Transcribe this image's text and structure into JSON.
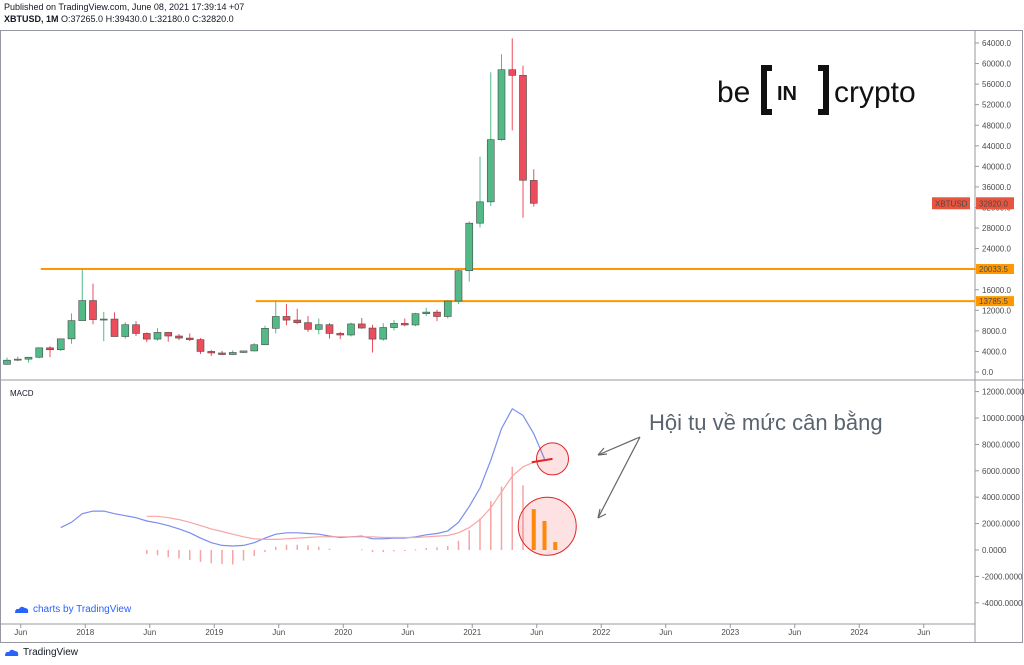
{
  "header": {
    "published": "Published on TradingView.com, June 08, 2021 17:39:14 +07",
    "symbol": "XBTUSD, 1M",
    "ohlc": "O:37265.0 H:39430.0 L:32180.0 C:32820.0"
  },
  "brand": {
    "left": "be",
    "middle": "IN",
    "right": "crypto"
  },
  "annotation": "Hội tụ về mức cân bằng",
  "macd_label": "MACD",
  "watermark": "charts by TradingView",
  "footer": "TradingView",
  "colors": {
    "up": "#53b987",
    "down": "#eb4d5c",
    "level": "#ff9800",
    "macd_line": "#7b8cf0",
    "signal_line": "#f7a4a4",
    "price_tag": "#e8553e"
  },
  "chart_data": [
    {
      "type": "candlestick",
      "title": "XBTUSD, 1M",
      "ylim": [
        -2000,
        66000
      ],
      "yticks": [
        "64000.0",
        "60000.0",
        "56000.0",
        "52000.0",
        "48000.0",
        "44000.0",
        "40000.0",
        "36000.0",
        "32000.0",
        "28000.0",
        "24000.0",
        "20000.0",
        "16000.0",
        "12000.0",
        "8000.0",
        "4000.0",
        "0.0"
      ],
      "xticks": [
        "Jun",
        "2018",
        "Jun",
        "2019",
        "Jun",
        "2020",
        "Jun",
        "2021",
        "Jun",
        "2022",
        "Jun",
        "2023",
        "Jun",
        "2024",
        "Jun"
      ],
      "last_price_label": "XBTUSD",
      "last_price": "32820.0",
      "levels": [
        {
          "value": 20033.5,
          "label": "20033.5"
        },
        {
          "value": 13785.5,
          "label": "13785.5"
        }
      ],
      "candles": [
        {
          "t": "2017-05",
          "o": 1500,
          "h": 2800,
          "l": 1400,
          "c": 2300
        },
        {
          "t": "2017-06",
          "o": 2300,
          "h": 3000,
          "l": 2100,
          "c": 2500
        },
        {
          "t": "2017-07",
          "o": 2500,
          "h": 2950,
          "l": 1850,
          "c": 2870
        },
        {
          "t": "2017-08",
          "o": 2870,
          "h": 4750,
          "l": 2700,
          "c": 4700
        },
        {
          "t": "2017-09",
          "o": 4700,
          "h": 5000,
          "l": 2900,
          "c": 4330
        },
        {
          "t": "2017-10",
          "o": 4330,
          "h": 6450,
          "l": 4100,
          "c": 6450
        },
        {
          "t": "2017-11",
          "o": 6450,
          "h": 11400,
          "l": 5500,
          "c": 10000
        },
        {
          "t": "2017-12",
          "o": 10000,
          "h": 20000,
          "l": 10000,
          "c": 13900
        },
        {
          "t": "2018-01",
          "o": 13900,
          "h": 17200,
          "l": 9300,
          "c": 10200
        },
        {
          "t": "2018-02",
          "o": 10200,
          "h": 11700,
          "l": 6000,
          "c": 10300
        },
        {
          "t": "2018-03",
          "o": 10300,
          "h": 11600,
          "l": 6900,
          "c": 6900
        },
        {
          "t": "2018-04",
          "o": 6900,
          "h": 9700,
          "l": 6500,
          "c": 9200
        },
        {
          "t": "2018-05",
          "o": 9200,
          "h": 9900,
          "l": 7000,
          "c": 7500
        },
        {
          "t": "2018-06",
          "o": 7500,
          "h": 7700,
          "l": 5800,
          "c": 6400
        },
        {
          "t": "2018-07",
          "o": 6400,
          "h": 8500,
          "l": 6100,
          "c": 7700
        },
        {
          "t": "2018-08",
          "o": 7700,
          "h": 7800,
          "l": 5900,
          "c": 7000
        },
        {
          "t": "2018-09",
          "o": 7000,
          "h": 7400,
          "l": 6200,
          "c": 6600
        },
        {
          "t": "2018-10",
          "o": 6600,
          "h": 7500,
          "l": 6000,
          "c": 6300
        },
        {
          "t": "2018-11",
          "o": 6300,
          "h": 6600,
          "l": 3500,
          "c": 4000
        },
        {
          "t": "2018-12",
          "o": 4000,
          "h": 4300,
          "l": 3100,
          "c": 3700
        },
        {
          "t": "2019-01",
          "o": 3700,
          "h": 4100,
          "l": 3300,
          "c": 3400
        },
        {
          "t": "2019-02",
          "o": 3400,
          "h": 4200,
          "l": 3300,
          "c": 3800
        },
        {
          "t": "2019-03",
          "o": 3800,
          "h": 4150,
          "l": 3700,
          "c": 4100
        },
        {
          "t": "2019-04",
          "o": 4100,
          "h": 5600,
          "l": 4000,
          "c": 5300
        },
        {
          "t": "2019-05",
          "o": 5300,
          "h": 9000,
          "l": 5300,
          "c": 8500
        },
        {
          "t": "2019-06",
          "o": 8500,
          "h": 13900,
          "l": 7500,
          "c": 10800
        },
        {
          "t": "2019-07",
          "o": 10800,
          "h": 13200,
          "l": 9100,
          "c": 10100
        },
        {
          "t": "2019-08",
          "o": 10100,
          "h": 12300,
          "l": 9300,
          "c": 9600
        },
        {
          "t": "2019-09",
          "o": 9600,
          "h": 10900,
          "l": 7800,
          "c": 8300
        },
        {
          "t": "2019-10",
          "o": 8300,
          "h": 10400,
          "l": 7300,
          "c": 9200
        },
        {
          "t": "2019-11",
          "o": 9200,
          "h": 9500,
          "l": 6500,
          "c": 7500
        },
        {
          "t": "2019-12",
          "o": 7500,
          "h": 7800,
          "l": 6400,
          "c": 7200
        },
        {
          "t": "2020-01",
          "o": 7200,
          "h": 9600,
          "l": 6900,
          "c": 9350
        },
        {
          "t": "2020-02",
          "o": 9350,
          "h": 10500,
          "l": 8400,
          "c": 8550
        },
        {
          "t": "2020-03",
          "o": 8550,
          "h": 9200,
          "l": 3800,
          "c": 6400
        },
        {
          "t": "2020-04",
          "o": 6400,
          "h": 9500,
          "l": 6100,
          "c": 8650
        },
        {
          "t": "2020-05",
          "o": 8650,
          "h": 10100,
          "l": 8100,
          "c": 9450
        },
        {
          "t": "2020-06",
          "o": 9450,
          "h": 10400,
          "l": 8900,
          "c": 9150
        },
        {
          "t": "2020-07",
          "o": 9150,
          "h": 11500,
          "l": 8900,
          "c": 11350
        },
        {
          "t": "2020-08",
          "o": 11350,
          "h": 12500,
          "l": 10900,
          "c": 11650
        },
        {
          "t": "2020-09",
          "o": 11650,
          "h": 12100,
          "l": 9900,
          "c": 10800
        },
        {
          "t": "2020-10",
          "o": 10800,
          "h": 14000,
          "l": 10400,
          "c": 13800
        },
        {
          "t": "2020-11",
          "o": 13800,
          "h": 19900,
          "l": 13200,
          "c": 19700
        },
        {
          "t": "2020-12",
          "o": 19700,
          "h": 29300,
          "l": 17600,
          "c": 28950
        },
        {
          "t": "2021-01",
          "o": 28950,
          "h": 41900,
          "l": 28100,
          "c": 33100
        },
        {
          "t": "2021-02",
          "o": 33100,
          "h": 58300,
          "l": 32300,
          "c": 45200
        },
        {
          "t": "2021-03",
          "o": 45200,
          "h": 61800,
          "l": 45000,
          "c": 58800
        },
        {
          "t": "2021-04",
          "o": 58800,
          "h": 64900,
          "l": 47000,
          "c": 57700
        },
        {
          "t": "2021-05",
          "o": 57700,
          "h": 59600,
          "l": 30000,
          "c": 37300
        },
        {
          "t": "2021-06",
          "o": 37265,
          "h": 39430,
          "l": 32180,
          "c": 32820
        }
      ]
    },
    {
      "type": "line",
      "title": "MACD",
      "ylim": [
        -4500,
        12500
      ],
      "yticks": [
        "12000.0000",
        "10000.0000",
        "8000.0000",
        "6000.0000",
        "4000.0000",
        "2000.0000",
        "0.0000",
        "-2000.0000",
        "-4000.0000"
      ],
      "series": [
        {
          "name": "MACD",
          "values": [
            {
              "t": "2017-10",
              "y": 1700
            },
            {
              "t": "2017-11",
              "y": 2100
            },
            {
              "t": "2017-12",
              "y": 2750
            },
            {
              "t": "2018-01",
              "y": 2950
            },
            {
              "t": "2018-02",
              "y": 2950
            },
            {
              "t": "2018-03",
              "y": 2750
            },
            {
              "t": "2018-04",
              "y": 2600
            },
            {
              "t": "2018-05",
              "y": 2450
            },
            {
              "t": "2018-06",
              "y": 2200
            },
            {
              "t": "2018-07",
              "y": 2050
            },
            {
              "t": "2018-08",
              "y": 1850
            },
            {
              "t": "2018-09",
              "y": 1600
            },
            {
              "t": "2018-10",
              "y": 1300
            },
            {
              "t": "2018-11",
              "y": 900
            },
            {
              "t": "2018-12",
              "y": 550
            },
            {
              "t": "2019-01",
              "y": 350
            },
            {
              "t": "2019-02",
              "y": 300
            },
            {
              "t": "2019-03",
              "y": 350
            },
            {
              "t": "2019-04",
              "y": 550
            },
            {
              "t": "2019-05",
              "y": 900
            },
            {
              "t": "2019-06",
              "y": 1200
            },
            {
              "t": "2019-07",
              "y": 1300
            },
            {
              "t": "2019-08",
              "y": 1300
            },
            {
              "t": "2019-09",
              "y": 1250
            },
            {
              "t": "2019-10",
              "y": 1200
            },
            {
              "t": "2019-11",
              "y": 1050
            },
            {
              "t": "2019-12",
              "y": 950
            },
            {
              "t": "2020-01",
              "y": 1000
            },
            {
              "t": "2020-02",
              "y": 1050
            },
            {
              "t": "2020-03",
              "y": 850
            },
            {
              "t": "2020-04",
              "y": 850
            },
            {
              "t": "2020-05",
              "y": 900
            },
            {
              "t": "2020-06",
              "y": 900
            },
            {
              "t": "2020-07",
              "y": 1000
            },
            {
              "t": "2020-08",
              "y": 1150
            },
            {
              "t": "2020-09",
              "y": 1250
            },
            {
              "t": "2020-10",
              "y": 1450
            },
            {
              "t": "2020-11",
              "y": 2100
            },
            {
              "t": "2020-12",
              "y": 3300
            },
            {
              "t": "2021-01",
              "y": 4700
            },
            {
              "t": "2021-02",
              "y": 6800
            },
            {
              "t": "2021-03",
              "y": 9200
            },
            {
              "t": "2021-04",
              "y": 10700
            },
            {
              "t": "2021-05",
              "y": 10200
            },
            {
              "t": "2021-06",
              "y": 8800
            },
            {
              "t": "2021-07",
              "y": 6900
            }
          ]
        },
        {
          "name": "Signal",
          "values": [
            {
              "t": "2018-06",
              "y": 2550
            },
            {
              "t": "2018-07",
              "y": 2550
            },
            {
              "t": "2018-08",
              "y": 2450
            },
            {
              "t": "2018-09",
              "y": 2300
            },
            {
              "t": "2018-10",
              "y": 2100
            },
            {
              "t": "2018-11",
              "y": 1850
            },
            {
              "t": "2018-12",
              "y": 1600
            },
            {
              "t": "2019-01",
              "y": 1400
            },
            {
              "t": "2019-02",
              "y": 1200
            },
            {
              "t": "2019-03",
              "y": 1000
            },
            {
              "t": "2019-04",
              "y": 850
            },
            {
              "t": "2019-05",
              "y": 800
            },
            {
              "t": "2019-06",
              "y": 800
            },
            {
              "t": "2019-07",
              "y": 850
            },
            {
              "t": "2019-08",
              "y": 900
            },
            {
              "t": "2019-09",
              "y": 950
            },
            {
              "t": "2019-10",
              "y": 1000
            },
            {
              "t": "2019-11",
              "y": 1000
            },
            {
              "t": "2019-12",
              "y": 1000
            },
            {
              "t": "2020-01",
              "y": 1000
            },
            {
              "t": "2020-02",
              "y": 1000
            },
            {
              "t": "2020-03",
              "y": 1000
            },
            {
              "t": "2020-04",
              "y": 950
            },
            {
              "t": "2020-05",
              "y": 950
            },
            {
              "t": "2020-06",
              "y": 950
            },
            {
              "t": "2020-07",
              "y": 950
            },
            {
              "t": "2020-08",
              "y": 1000
            },
            {
              "t": "2020-09",
              "y": 1050
            },
            {
              "t": "2020-10",
              "y": 1100
            },
            {
              "t": "2020-11",
              "y": 1300
            },
            {
              "t": "2020-12",
              "y": 1700
            },
            {
              "t": "2021-01",
              "y": 2300
            },
            {
              "t": "2021-02",
              "y": 3200
            },
            {
              "t": "2021-03",
              "y": 4400
            },
            {
              "t": "2021-04",
              "y": 5600
            },
            {
              "t": "2021-05",
              "y": 6300
            },
            {
              "t": "2021-06",
              "y": 6650
            },
            {
              "t": "2021-07",
              "y": 6850
            }
          ]
        }
      ],
      "histogram": [
        {
          "t": "2018-06",
          "y": -300
        },
        {
          "t": "2018-07",
          "y": -400
        },
        {
          "t": "2018-08",
          "y": -550
        },
        {
          "t": "2018-09",
          "y": -650
        },
        {
          "t": "2018-10",
          "y": -750
        },
        {
          "t": "2018-11",
          "y": -900
        },
        {
          "t": "2018-12",
          "y": -1000
        },
        {
          "t": "2019-01",
          "y": -1050
        },
        {
          "t": "2019-02",
          "y": -1100
        },
        {
          "t": "2019-03",
          "y": -800
        },
        {
          "t": "2019-04",
          "y": -450
        },
        {
          "t": "2019-05",
          "y": -150
        },
        {
          "t": "2019-06",
          "y": 250
        },
        {
          "t": "2019-07",
          "y": 400
        },
        {
          "t": "2019-08",
          "y": 400
        },
        {
          "t": "2019-09",
          "y": 350
        },
        {
          "t": "2019-10",
          "y": 250
        },
        {
          "t": "2019-11",
          "y": 100
        },
        {
          "t": "2020-02",
          "y": 50
        },
        {
          "t": "2020-03",
          "y": -150
        },
        {
          "t": "2020-04",
          "y": -150
        },
        {
          "t": "2020-05",
          "y": -100
        },
        {
          "t": "2020-06",
          "y": -50
        },
        {
          "t": "2020-07",
          "y": 50
        },
        {
          "t": "2020-08",
          "y": 150
        },
        {
          "t": "2020-09",
          "y": 200
        },
        {
          "t": "2020-10",
          "y": 300
        },
        {
          "t": "2020-11",
          "y": 700
        },
        {
          "t": "2020-12",
          "y": 1500
        },
        {
          "t": "2021-01",
          "y": 2400
        },
        {
          "t": "2021-02",
          "y": 3700
        },
        {
          "t": "2021-03",
          "y": 4800
        },
        {
          "t": "2021-04",
          "y": 6300
        },
        {
          "t": "2021-05",
          "y": 4900
        },
        {
          "t": "2021-06",
          "y": 3100
        },
        {
          "t": "2021-07",
          "y": 2200
        },
        {
          "t": "2021-08",
          "y": 600
        }
      ]
    }
  ]
}
